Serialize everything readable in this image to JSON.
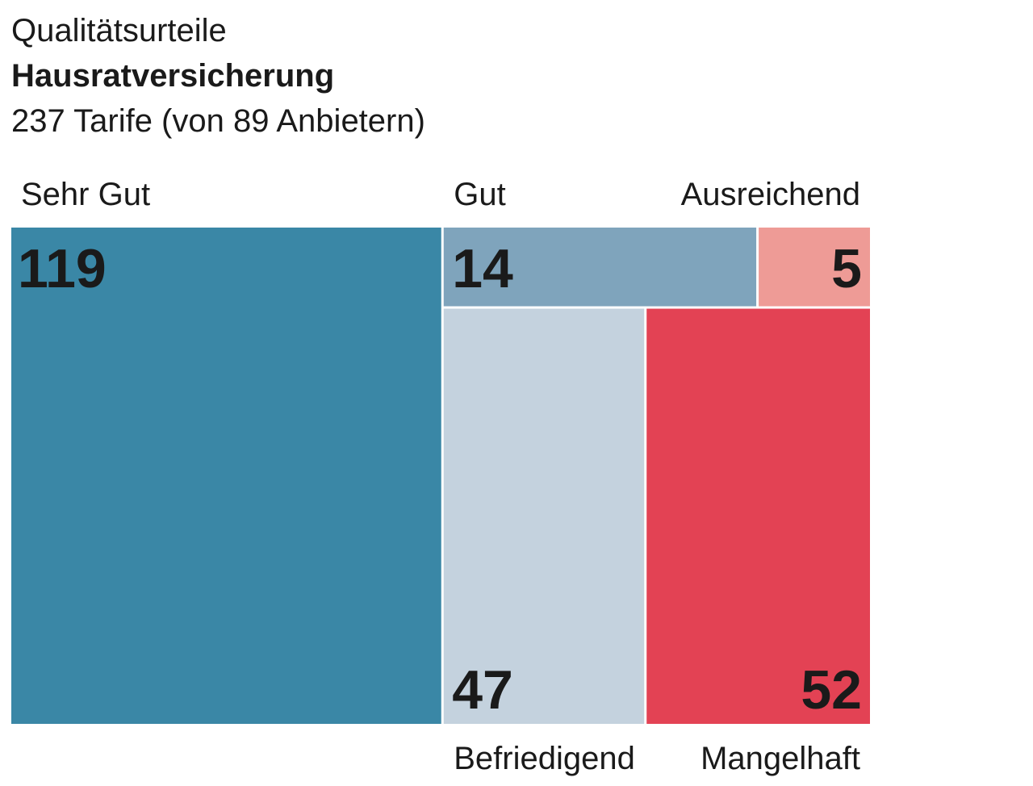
{
  "chart_data": {
    "type": "treemap",
    "supertitle": "Qualitätsurteile",
    "title": "Hausratversicherung",
    "subtitle": "237 Tarife (von 89 Anbietern)",
    "total": 237,
    "categories": [
      {
        "name": "Sehr Gut",
        "value": 119,
        "color": "#3a87a6"
      },
      {
        "name": "Gut",
        "value": 14,
        "color": "#7fa4bc"
      },
      {
        "name": "Ausreichend",
        "value": 5,
        "color": "#ee9b96"
      },
      {
        "name": "Befriedigend",
        "value": 47,
        "color": "#c4d2de"
      },
      {
        "name": "Mangelhaft",
        "value": 52,
        "color": "#e34254"
      }
    ]
  }
}
